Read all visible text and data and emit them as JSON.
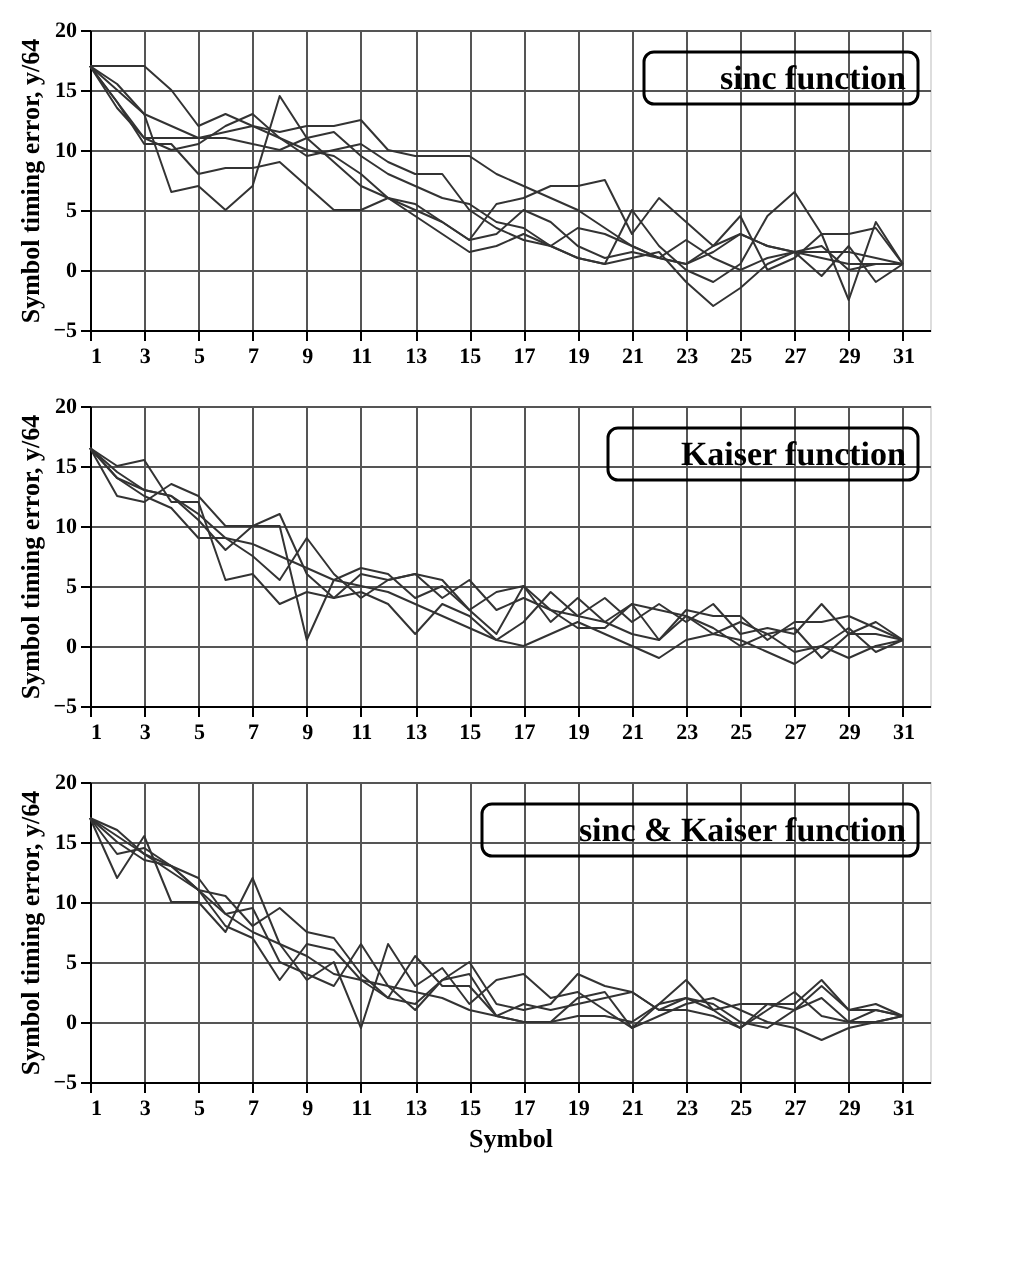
{
  "chart_data": [
    {
      "type": "line",
      "ylabel": "Symbol timing error, y/64",
      "annotations": [
        "sinc function"
      ],
      "x": [
        1,
        2,
        3,
        4,
        5,
        6,
        7,
        8,
        9,
        10,
        11,
        12,
        13,
        14,
        15,
        16,
        17,
        18,
        19,
        20,
        21,
        22,
        23,
        24,
        25,
        26,
        27,
        28,
        29,
        30,
        31
      ],
      "xlim": [
        1,
        32
      ],
      "xticks": [
        1,
        3,
        5,
        7,
        9,
        11,
        13,
        15,
        17,
        19,
        21,
        23,
        25,
        27,
        29,
        31
      ],
      "ylim": [
        -5,
        20
      ],
      "yticks": [
        -5,
        0,
        5,
        10,
        15,
        20
      ],
      "grid": true,
      "legend": false,
      "series": [
        {
          "color": "#333333",
          "values": [
            17,
            13.5,
            11,
            11,
            11,
            11.5,
            12,
            11,
            10,
            9.5,
            8,
            6,
            5.5,
            4,
            2.5,
            3,
            5,
            4,
            2,
            1,
            1.5,
            1,
            0.5,
            1.5,
            3,
            2,
            1.5,
            1,
            0.5,
            0.5,
            0.5
          ]
        },
        {
          "color": "#333333",
          "values": [
            17,
            17,
            17,
            15,
            12,
            13,
            12,
            11.5,
            12,
            12,
            12.5,
            10,
            9.5,
            9.5,
            9.5,
            8,
            7,
            6,
            5,
            3.5,
            2,
            1,
            0.5,
            2,
            3,
            2,
            1.5,
            1.5,
            1.5,
            1,
            0.5
          ]
        },
        {
          "color": "#333333",
          "values": [
            17,
            15.5,
            13,
            6.5,
            7,
            5,
            7,
            14.5,
            11,
            9,
            7,
            6,
            4.5,
            3,
            1.5,
            2,
            3,
            2,
            1,
            0.5,
            1,
            1.5,
            -1,
            -3,
            -1.5,
            0.5,
            1.5,
            2,
            0,
            0.5,
            0.5
          ]
        },
        {
          "color": "#333333",
          "values": [
            17,
            14,
            10.5,
            10.5,
            8,
            8.5,
            8.5,
            9,
            7,
            5,
            5,
            6,
            5,
            4,
            2.5,
            5.5,
            6,
            7,
            7,
            7.5,
            3,
            6,
            4,
            2,
            4.5,
            0,
            1,
            3,
            3,
            3.5,
            0.5
          ]
        },
        {
          "color": "#333333",
          "values": [
            17,
            14,
            11,
            10,
            10.5,
            12,
            13,
            11,
            9.5,
            10,
            10.5,
            9,
            8,
            8,
            5,
            3.5,
            2.5,
            2,
            1,
            0.5,
            5,
            2,
            0,
            -1,
            0.5,
            4.5,
            6.5,
            3,
            -2.5,
            4,
            0.5
          ]
        },
        {
          "color": "#333333",
          "values": [
            17,
            15,
            13,
            12,
            11,
            11,
            10.5,
            10,
            11,
            11.5,
            9.5,
            8,
            7,
            6,
            5.5,
            4,
            3.5,
            2,
            3.5,
            3,
            2,
            1,
            2.5,
            1,
            0,
            1,
            1.5,
            -0.5,
            2,
            -1,
            0.5
          ]
        }
      ]
    },
    {
      "type": "line",
      "ylabel": "Symbol timing error, y/64",
      "annotations": [
        "Kaiser function"
      ],
      "x": [
        1,
        2,
        3,
        4,
        5,
        6,
        7,
        8,
        9,
        10,
        11,
        12,
        13,
        14,
        15,
        16,
        17,
        18,
        19,
        20,
        21,
        22,
        23,
        24,
        25,
        26,
        27,
        28,
        29,
        30,
        31
      ],
      "xlim": [
        1,
        32
      ],
      "xticks": [
        1,
        3,
        5,
        7,
        9,
        11,
        13,
        15,
        17,
        19,
        21,
        23,
        25,
        27,
        29,
        31
      ],
      "ylim": [
        -5,
        20
      ],
      "yticks": [
        -5,
        0,
        5,
        10,
        15,
        20
      ],
      "grid": true,
      "legend": false,
      "series": [
        {
          "color": "#333333",
          "values": [
            16.5,
            14,
            12.5,
            11.5,
            9,
            9,
            8.5,
            7.5,
            6.5,
            5.5,
            5,
            4.5,
            3.5,
            2.5,
            1.5,
            0.5,
            0,
            1,
            2,
            1,
            0,
            -1,
            0.5,
            1,
            0.5,
            -0.5,
            -1.5,
            0,
            -1,
            0,
            0.5
          ]
        },
        {
          "color": "#333333",
          "values": [
            16.5,
            15,
            15.5,
            12,
            12,
            5.5,
            6,
            3.5,
            4.5,
            4,
            6,
            5.5,
            6,
            5.5,
            3,
            4.5,
            5,
            3,
            2.5,
            4,
            2,
            3.5,
            2,
            3.5,
            1,
            1.5,
            1,
            3.5,
            1,
            2,
            0.5
          ]
        },
        {
          "color": "#333333",
          "values": [
            16.5,
            12.5,
            12,
            13.5,
            12.5,
            10,
            10,
            11,
            6,
            4,
            4.5,
            3.5,
            1,
            3.5,
            2.5,
            0.5,
            2,
            4.5,
            2.5,
            2,
            3.5,
            0.5,
            2.5,
            1.5,
            0,
            1,
            -0.5,
            0,
            1.5,
            -0.5,
            0.5
          ]
        },
        {
          "color": "#333333",
          "values": [
            16.5,
            14.5,
            13,
            12.5,
            11,
            9,
            7.5,
            5.5,
            9,
            6,
            4,
            5.5,
            6,
            4,
            5.5,
            3,
            4,
            3,
            1.5,
            1.5,
            3.5,
            3,
            2.5,
            1,
            2,
            1,
            1.5,
            -1,
            1,
            1,
            0.5
          ]
        },
        {
          "color": "#333333",
          "values": [
            16.5,
            14,
            13,
            12.5,
            10.5,
            8,
            10,
            10,
            0.5,
            5.5,
            6.5,
            6,
            4,
            5,
            3,
            1,
            5,
            2,
            4,
            2,
            1,
            0.5,
            3,
            2.5,
            2.5,
            0.5,
            2,
            2,
            2.5,
            1.5,
            0.5
          ]
        }
      ]
    },
    {
      "type": "line",
      "ylabel": "Symbol timing error, y/64",
      "xlabel": "Symbol",
      "annotations": [
        "sinc & Kaiser function"
      ],
      "x": [
        1,
        2,
        3,
        4,
        5,
        6,
        7,
        8,
        9,
        10,
        11,
        12,
        13,
        14,
        15,
        16,
        17,
        18,
        19,
        20,
        21,
        22,
        23,
        24,
        25,
        26,
        27,
        28,
        29,
        30,
        31
      ],
      "xlim": [
        1,
        32
      ],
      "xticks": [
        1,
        3,
        5,
        7,
        9,
        11,
        13,
        15,
        17,
        19,
        21,
        23,
        25,
        27,
        29,
        31
      ],
      "ylim": [
        -5,
        20
      ],
      "yticks": [
        -5,
        0,
        5,
        10,
        15,
        20
      ],
      "grid": true,
      "legend": false,
      "series": [
        {
          "color": "#333333",
          "values": [
            17,
            14,
            14.5,
            13,
            11,
            8,
            7,
            3.5,
            6.5,
            6,
            3.5,
            2,
            1.5,
            3.5,
            4,
            0.5,
            0,
            0,
            2,
            2.5,
            -0.5,
            0.5,
            1.5,
            2,
            1,
            0,
            -0.5,
            -1.5,
            -0.5,
            0,
            0.5
          ]
        },
        {
          "color": "#333333",
          "values": [
            17,
            12,
            15.5,
            10,
            10,
            7.5,
            12,
            6.5,
            3.5,
            5,
            -0.5,
            6.5,
            3,
            4.5,
            1.5,
            3.5,
            4,
            2,
            2.5,
            1,
            -0.5,
            1.5,
            3.5,
            1,
            1.5,
            1.5,
            1.5,
            3.5,
            1,
            1,
            0.5
          ]
        },
        {
          "color": "#333333",
          "values": [
            17,
            15,
            13.5,
            13,
            12,
            9,
            9.5,
            5,
            4,
            3,
            6.5,
            3,
            1,
            3.5,
            5,
            1.5,
            1,
            1.5,
            4,
            3,
            2.5,
            1,
            2,
            1.5,
            0,
            -0.5,
            1,
            2,
            0,
            0,
            0.5
          ]
        },
        {
          "color": "#333333",
          "values": [
            17,
            15.5,
            14,
            12.5,
            11,
            10.5,
            8,
            9.5,
            7.5,
            7,
            4,
            2,
            5.5,
            3,
            3,
            0.5,
            1.5,
            1,
            1.5,
            2,
            2.5,
            1,
            1,
            0.5,
            -0.5,
            1,
            2.5,
            0.5,
            0,
            1,
            0.5
          ]
        },
        {
          "color": "#333333",
          "values": [
            17,
            16,
            14,
            13,
            11,
            9,
            7.5,
            6.5,
            5.5,
            4,
            3.5,
            3,
            2.5,
            2,
            1,
            0.5,
            0,
            0,
            0.5,
            0.5,
            0,
            1.5,
            2,
            1,
            -0.5,
            1.5,
            1,
            3,
            1,
            1.5,
            0.5
          ]
        }
      ]
    }
  ]
}
